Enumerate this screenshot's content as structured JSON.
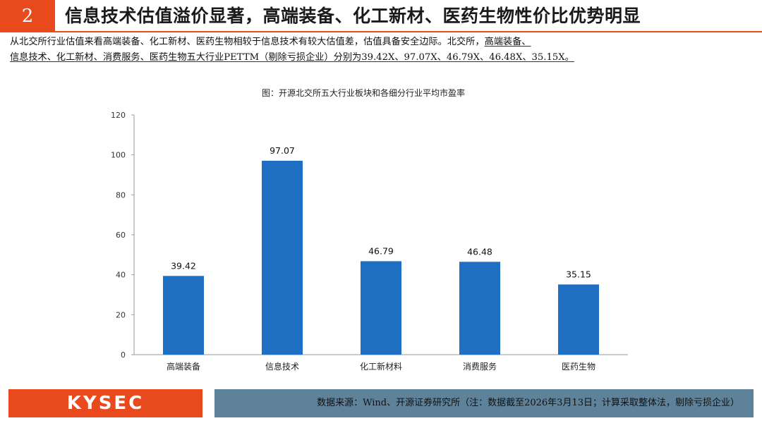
{
  "header": {
    "number": "2",
    "title": "信息技术估值溢价显著，高端装备、化工新材、医药生物性价比优势明显",
    "accent_color": "#e8491d"
  },
  "summary": {
    "line1_a": "从北交所行业估值来看高端装备、化工新材、医药生物相较于信息技术有较大估值差，估值具备安全边际。北交所，",
    "line1_b": "高端装备、",
    "line2": "信息技术、化工新材、消费服务、医药生物五大行业PETTM（剔除亏损企业）分别为39.42X、97.07X、46.79X、46.48X、35.15X。"
  },
  "chart_data": {
    "type": "bar",
    "title": "图：开源北交所五大行业板块和各细分行业平均市盈率",
    "categories": [
      "高端装备",
      "信息技术",
      "化工新材料",
      "消费服务",
      "医药生物"
    ],
    "values": [
      39.42,
      97.07,
      46.79,
      46.48,
      35.15
    ],
    "value_labels": [
      "39.42",
      "97.07",
      "46.79",
      "46.48",
      "35.15"
    ],
    "ylim": [
      0,
      120
    ],
    "yticks": [
      0,
      20,
      40,
      60,
      80,
      100,
      120
    ],
    "grid": false,
    "bar_color": "#1f6fc3"
  },
  "footer": {
    "logo": "KYSEC",
    "source": "数据来源：Wind、开源证券研究所（注：数据截至2026年3月13日；计算采取整体法，剔除亏损企业）"
  }
}
